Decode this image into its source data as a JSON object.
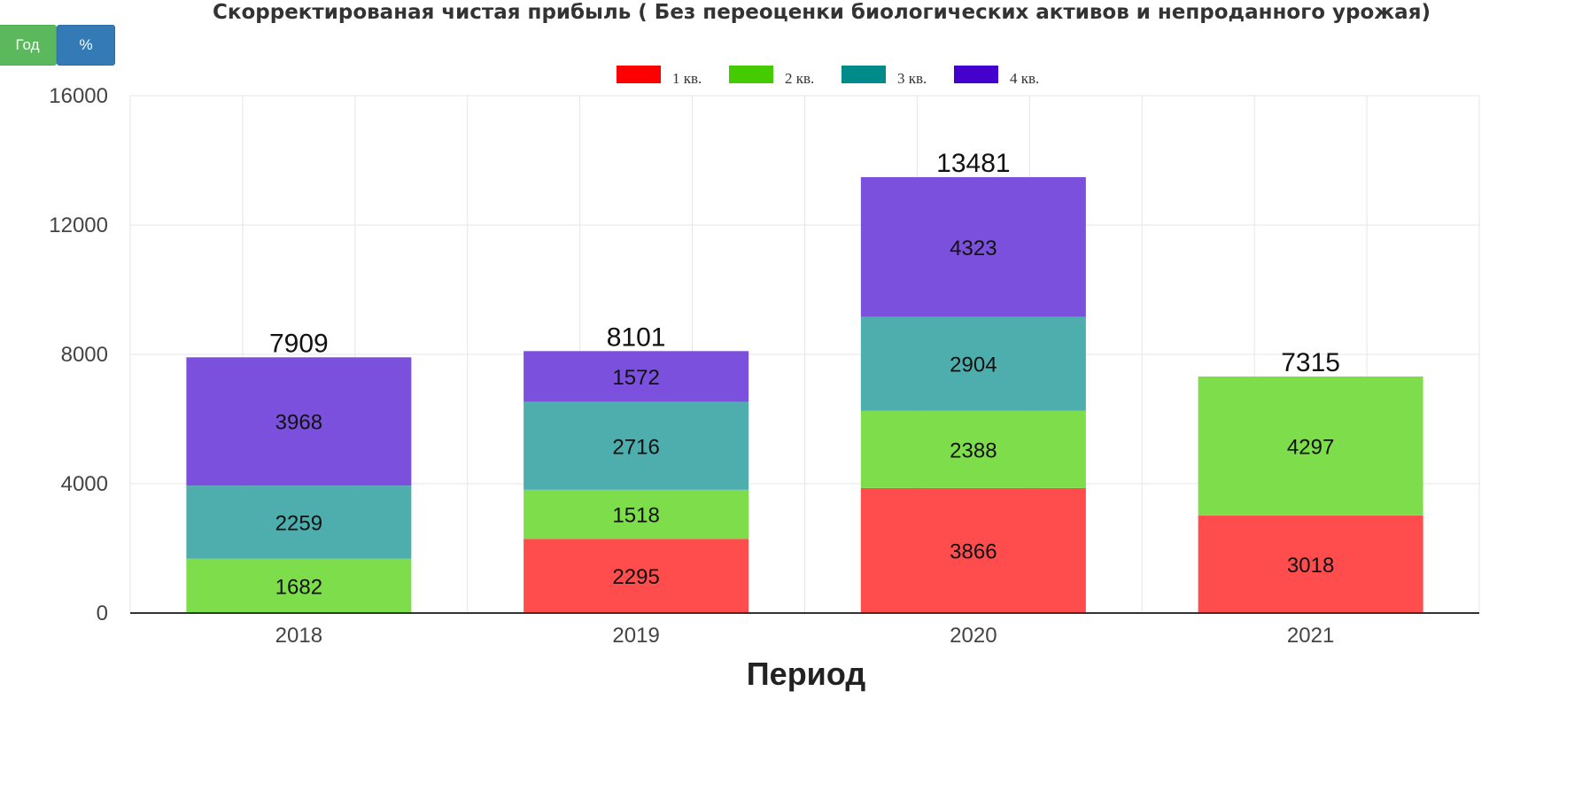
{
  "toolbar": {
    "year_label": "Год",
    "percent_label": "%"
  },
  "colors": {
    "q1": "#ff4c4c",
    "q2": "#7ddd4a",
    "q3": "#4eadad",
    "q4": "#7b50dc"
  },
  "legend_colors": {
    "q1": "#ff0000",
    "q2": "#44cc00",
    "q3": "#008b8b",
    "q4": "#4400cc"
  },
  "chart_data": {
    "type": "bar",
    "stacked": true,
    "title": "Скорректированая чистая прибыль ( Без переоценки биологических активов и непроданного урожая)",
    "xlabel": "Период",
    "ylabel": "",
    "ylim": [
      0,
      16000
    ],
    "yticks": [
      "0",
      "4000",
      "8000",
      "12000",
      "16000"
    ],
    "categories": [
      "2018",
      "2019",
      "2020",
      "2021"
    ],
    "series": [
      {
        "name": "1 кв.",
        "values": [
          null,
          2295,
          3866,
          3018
        ]
      },
      {
        "name": "2 кв.",
        "values": [
          1682,
          1518,
          2388,
          4297
        ]
      },
      {
        "name": "3 кв.",
        "values": [
          2259,
          2716,
          2904,
          null
        ]
      },
      {
        "name": "4 кв.",
        "values": [
          3968,
          1572,
          4323,
          null
        ]
      }
    ],
    "totals": [
      "7909",
      "8101",
      "13481",
      "7315"
    ],
    "legend_position": "top-center",
    "grid": true
  }
}
